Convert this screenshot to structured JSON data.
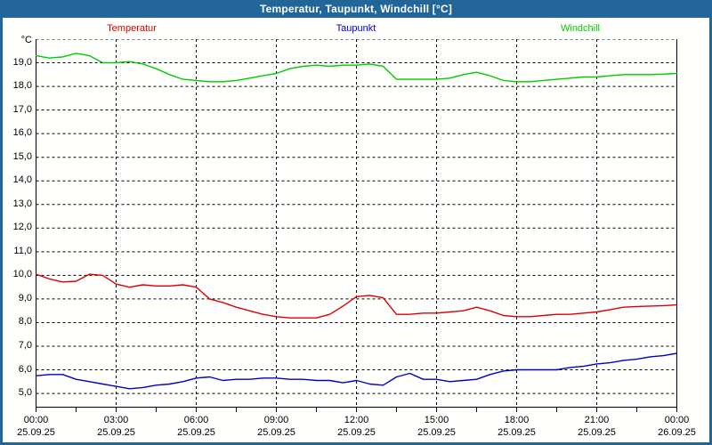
{
  "window": {
    "title": "Temperatur, Taupunkt, Windchill [°C]"
  },
  "colors": {
    "titlebar": "#226699",
    "background": "#fffffe",
    "grid": "#000000",
    "temperatur": "#dd0000",
    "taupunkt": "#0000cc",
    "windchill": "#00cc00"
  },
  "legend": {
    "items": [
      {
        "label": "Temperatur",
        "color": "#dd0000"
      },
      {
        "label": "Taupunkt",
        "color": "#0000cc"
      },
      {
        "label": "Windchill",
        "color": "#00cc00"
      }
    ]
  },
  "chart_data": {
    "type": "line",
    "title": "Temperatur, Taupunkt, Windchill [°C]",
    "xlabel": "",
    "ylabel": "°C",
    "grid": true,
    "legend_position": "top",
    "ylim": [
      4.4,
      20.0
    ],
    "x_hours_range": [
      0,
      24
    ],
    "x_step_hours": 0.5,
    "x_minor_tick_hours": 1.5,
    "x_gridline_hours": [
      3,
      6,
      9,
      12,
      15,
      18,
      21
    ],
    "y_gridlines": [
      5,
      6,
      7,
      8,
      9,
      10,
      11,
      12,
      13,
      14,
      15,
      16,
      17,
      18,
      19,
      20
    ],
    "y_ticks": [
      {
        "value": 19,
        "label": "19,0"
      },
      {
        "value": 18,
        "label": "18,0"
      },
      {
        "value": 17,
        "label": "17,0"
      },
      {
        "value": 16,
        "label": "16,0"
      },
      {
        "value": 15,
        "label": "15,0"
      },
      {
        "value": 14,
        "label": "14,0"
      },
      {
        "value": 13,
        "label": "13,0"
      },
      {
        "value": 12,
        "label": "12,0"
      },
      {
        "value": 11,
        "label": "11,0"
      },
      {
        "value": 10,
        "label": "10,0"
      },
      {
        "value": 9,
        "label": "9,0"
      },
      {
        "value": 8,
        "label": "8,0"
      },
      {
        "value": 7,
        "label": "7,0"
      },
      {
        "value": 6,
        "label": "6,0"
      },
      {
        "value": 5,
        "label": "5,0"
      }
    ],
    "x_ticks": [
      {
        "hour": 0,
        "time": "00:00",
        "date": "25.09.25"
      },
      {
        "hour": 3,
        "time": "03:00",
        "date": "25.09.25"
      },
      {
        "hour": 6,
        "time": "06:00",
        "date": "25.09.25"
      },
      {
        "hour": 9,
        "time": "09:00",
        "date": "25.09.25"
      },
      {
        "hour": 12,
        "time": "12:00",
        "date": "25.09.25"
      },
      {
        "hour": 15,
        "time": "15:00",
        "date": "25.09.25"
      },
      {
        "hour": 18,
        "time": "18:00",
        "date": "25.09.25"
      },
      {
        "hour": 21,
        "time": "21:00",
        "date": "25.09.25"
      },
      {
        "hour": 24,
        "time": "00:00",
        "date": "26.09.25"
      }
    ],
    "series": [
      {
        "name": "Temperatur",
        "color": "#dd0000",
        "values": [
          10.05,
          9.85,
          9.72,
          9.75,
          10.05,
          10.0,
          9.63,
          9.5,
          9.6,
          9.55,
          9.55,
          9.6,
          9.5,
          9.0,
          8.85,
          8.65,
          8.5,
          8.35,
          8.25,
          8.2,
          8.2,
          8.2,
          8.35,
          8.7,
          9.1,
          9.15,
          9.05,
          8.35,
          8.35,
          8.4,
          8.4,
          8.45,
          8.5,
          8.65,
          8.5,
          8.3,
          8.25,
          8.25,
          8.3,
          8.35,
          8.35,
          8.4,
          8.45,
          8.55,
          8.65,
          8.68,
          8.7,
          8.72,
          8.75
        ]
      },
      {
        "name": "Taupunkt",
        "color": "#0000cc",
        "values": [
          5.75,
          5.8,
          5.8,
          5.6,
          5.5,
          5.4,
          5.3,
          5.2,
          5.25,
          5.35,
          5.4,
          5.5,
          5.65,
          5.7,
          5.55,
          5.6,
          5.6,
          5.65,
          5.65,
          5.6,
          5.6,
          5.55,
          5.55,
          5.45,
          5.55,
          5.4,
          5.35,
          5.7,
          5.85,
          5.6,
          5.6,
          5.5,
          5.55,
          5.6,
          5.8,
          5.95,
          6.0,
          6.0,
          6.0,
          6.0,
          6.1,
          6.15,
          6.25,
          6.3,
          6.4,
          6.45,
          6.55,
          6.6,
          6.7
        ]
      },
      {
        "name": "Windchill",
        "color": "#00cc00",
        "values": [
          19.3,
          19.2,
          19.25,
          19.4,
          19.3,
          19.0,
          19.0,
          19.05,
          18.95,
          18.75,
          18.5,
          18.3,
          18.25,
          18.2,
          18.2,
          18.25,
          18.35,
          18.45,
          18.55,
          18.75,
          18.85,
          18.9,
          18.85,
          18.9,
          18.9,
          18.95,
          18.85,
          18.3,
          18.3,
          18.3,
          18.3,
          18.35,
          18.5,
          18.6,
          18.45,
          18.25,
          18.2,
          18.2,
          18.25,
          18.3,
          18.35,
          18.4,
          18.4,
          18.45,
          18.5,
          18.5,
          18.5,
          18.52,
          18.55
        ]
      }
    ]
  }
}
